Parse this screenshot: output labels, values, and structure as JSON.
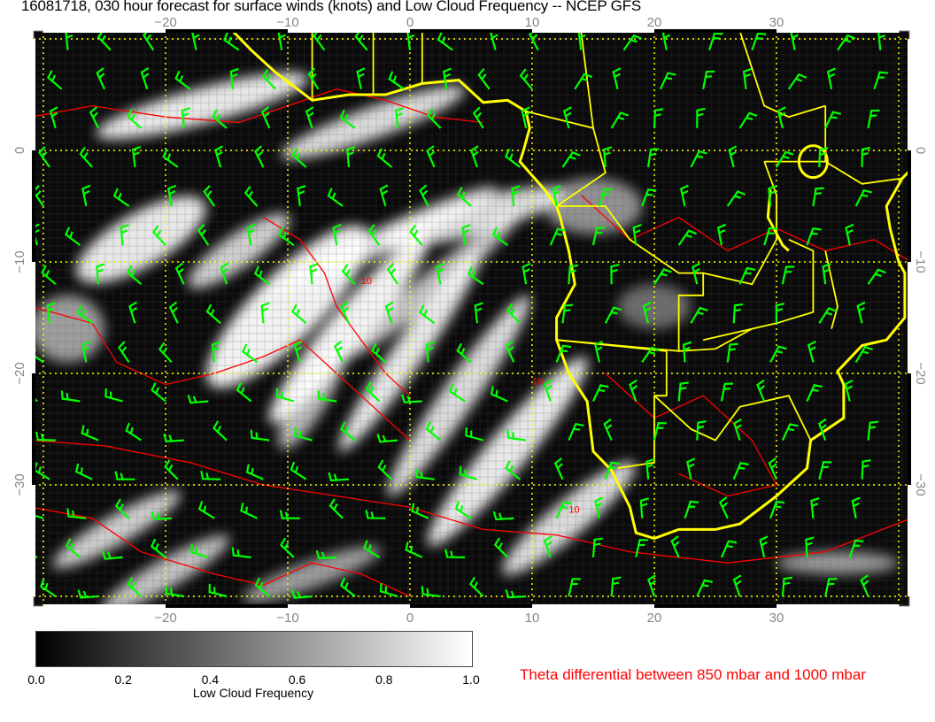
{
  "title": "16081718, 030 hour forecast for surface winds (knots) and Low Cloud Frequency -- NCEP GFS",
  "map": {
    "lon_ticks": [
      "−20",
      "−10",
      "0",
      "10",
      "20",
      "30"
    ],
    "lat_ticks": [
      "0",
      "−10",
      "−20",
      "−30"
    ],
    "lon_range": [
      -31,
      41
    ],
    "lat_range": [
      -41,
      10.7
    ],
    "colors": {
      "coastline": "#ffff00",
      "wind_barbs": "#00ff00",
      "theta_contours": "#ff0000",
      "grid": "#ffff00"
    },
    "contour_labels": [
      "10",
      "10",
      "10"
    ]
  },
  "colorbar": {
    "labels": [
      "0.0",
      "0.2",
      "0.4",
      "0.6",
      "0.8",
      "1.0"
    ],
    "title": "Low Cloud Frequency",
    "range": [
      0,
      1
    ]
  },
  "theta_legend": "Theta differential between 850 mbar and 1000 mbar"
}
